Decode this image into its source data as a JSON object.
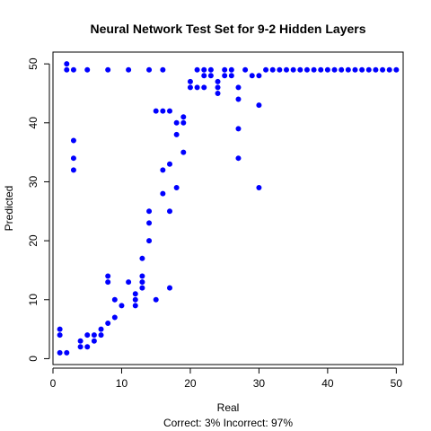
{
  "chart_data": {
    "type": "scatter",
    "title": "Neural Network Test Set for 9-2 Hidden Layers",
    "xlabel": "Real",
    "ylabel": "Predicted",
    "subtitle": "Correct: 3% Incorrect: 97%",
    "xlim": [
      0,
      51
    ],
    "ylim": [
      -1,
      52
    ],
    "xticks": [
      0,
      10,
      20,
      30,
      40,
      50
    ],
    "yticks": [
      0,
      10,
      20,
      30,
      40,
      50
    ],
    "grid": false,
    "point_color": "#0000ff",
    "series": [
      {
        "points": [
          [
            1,
            1
          ],
          [
            1,
            4
          ],
          [
            1,
            5
          ],
          [
            2,
            1
          ],
          [
            2,
            49
          ],
          [
            2,
            50
          ],
          [
            3,
            32
          ],
          [
            3,
            34
          ],
          [
            3,
            37
          ],
          [
            3,
            49
          ],
          [
            4,
            2
          ],
          [
            4,
            3
          ],
          [
            5,
            2
          ],
          [
            5,
            4
          ],
          [
            5,
            49
          ],
          [
            6,
            3
          ],
          [
            6,
            4
          ],
          [
            7,
            4
          ],
          [
            7,
            5
          ],
          [
            8,
            6
          ],
          [
            8,
            13
          ],
          [
            8,
            14
          ],
          [
            8,
            49
          ],
          [
            9,
            7
          ],
          [
            9,
            10
          ],
          [
            10,
            9
          ],
          [
            11,
            13
          ],
          [
            11,
            49
          ],
          [
            12,
            9
          ],
          [
            12,
            10
          ],
          [
            12,
            11
          ],
          [
            13,
            12
          ],
          [
            13,
            13
          ],
          [
            13,
            14
          ],
          [
            13,
            17
          ],
          [
            14,
            20
          ],
          [
            14,
            23
          ],
          [
            14,
            25
          ],
          [
            14,
            49
          ],
          [
            15,
            10
          ],
          [
            15,
            42
          ],
          [
            16,
            28
          ],
          [
            16,
            32
          ],
          [
            16,
            42
          ],
          [
            16,
            49
          ],
          [
            17,
            12
          ],
          [
            17,
            25
          ],
          [
            17,
            33
          ],
          [
            17,
            42
          ],
          [
            18,
            29
          ],
          [
            18,
            38
          ],
          [
            18,
            40
          ],
          [
            19,
            35
          ],
          [
            19,
            40
          ],
          [
            19,
            41
          ],
          [
            20,
            46
          ],
          [
            20,
            47
          ],
          [
            21,
            46
          ],
          [
            21,
            49
          ],
          [
            22,
            46
          ],
          [
            22,
            48
          ],
          [
            22,
            49
          ],
          [
            23,
            48
          ],
          [
            23,
            49
          ],
          [
            24,
            45
          ],
          [
            24,
            46
          ],
          [
            24,
            47
          ],
          [
            25,
            48
          ],
          [
            25,
            49
          ],
          [
            26,
            48
          ],
          [
            26,
            49
          ],
          [
            27,
            34
          ],
          [
            27,
            39
          ],
          [
            27,
            44
          ],
          [
            27,
            46
          ],
          [
            28,
            49
          ],
          [
            29,
            48
          ],
          [
            30,
            29
          ],
          [
            30,
            43
          ],
          [
            30,
            48
          ],
          [
            31,
            49
          ],
          [
            32,
            49
          ],
          [
            33,
            49
          ],
          [
            34,
            49
          ],
          [
            35,
            49
          ],
          [
            36,
            49
          ],
          [
            37,
            49
          ],
          [
            38,
            49
          ],
          [
            39,
            49
          ],
          [
            40,
            49
          ],
          [
            41,
            49
          ],
          [
            42,
            49
          ],
          [
            43,
            49
          ],
          [
            44,
            49
          ],
          [
            45,
            49
          ],
          [
            46,
            49
          ],
          [
            47,
            49
          ],
          [
            48,
            49
          ],
          [
            49,
            49
          ],
          [
            50,
            49
          ]
        ]
      }
    ]
  }
}
